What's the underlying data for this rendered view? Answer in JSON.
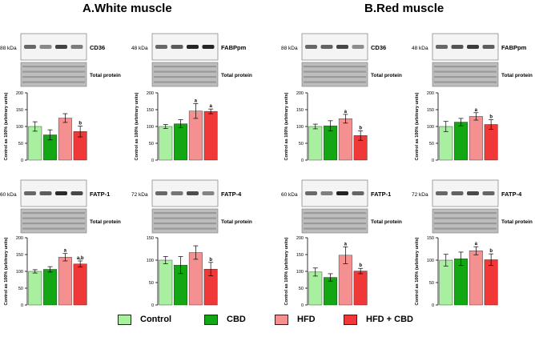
{
  "sections": [
    {
      "title": "A.White muscle"
    },
    {
      "title": "B.Red muscle"
    }
  ],
  "legend": [
    {
      "label": "Control",
      "color": "#a8f0a0"
    },
    {
      "label": "CBD",
      "color": "#13a813"
    },
    {
      "label": "HFD",
      "color": "#f59090"
    },
    {
      "label": "HFD + CBD",
      "color": "#f03838"
    }
  ],
  "total_protein_label": "Total protein",
  "chart_data": [
    {
      "type": "bar",
      "panel": "A.White muscle",
      "protein": "CD36",
      "kda": "88 kDa",
      "ylabel": "Control as 100% (arbitrary units)",
      "ylim": [
        0,
        200
      ],
      "yticks": [
        0,
        50,
        100,
        150,
        200
      ],
      "categories": [
        "Control",
        "CBD",
        "HFD",
        "HFD + CBD"
      ],
      "values": [
        100,
        75,
        125,
        85
      ],
      "errors": [
        14,
        15,
        13,
        16
      ],
      "annotations": [
        "",
        "",
        "",
        "b"
      ]
    },
    {
      "type": "bar",
      "panel": "A.White muscle",
      "protein": "FABPpm",
      "kda": "48 kDa",
      "ylabel": "Control as 100% (arbitrary units)",
      "ylim": [
        0,
        200
      ],
      "yticks": [
        0,
        50,
        100,
        150,
        200
      ],
      "categories": [
        "Control",
        "CBD",
        "HFD",
        "HFD + CBD"
      ],
      "values": [
        100,
        108,
        146,
        145
      ],
      "errors": [
        6,
        12,
        22,
        7
      ],
      "annotations": [
        "",
        "",
        "a",
        "a"
      ]
    },
    {
      "type": "bar",
      "panel": "B.Red muscle",
      "protein": "CD36",
      "kda": "88 kDa",
      "ylabel": "Control as 100% (arbitrary units)",
      "ylim": [
        0,
        200
      ],
      "yticks": [
        0,
        50,
        100,
        150,
        200
      ],
      "categories": [
        "Control",
        "CBD",
        "HFD",
        "HFD + CBD"
      ],
      "values": [
        100,
        102,
        123,
        73
      ],
      "errors": [
        7,
        15,
        13,
        14
      ],
      "annotations": [
        "",
        "",
        "a",
        "b"
      ]
    },
    {
      "type": "bar",
      "panel": "B.Red muscle",
      "protein": "FABPpm",
      "kda": "48 kDa",
      "ylabel": "Control as 100% (arbitrary units)",
      "ylim": [
        0,
        200
      ],
      "yticks": [
        0,
        50,
        100,
        150,
        200
      ],
      "categories": [
        "Control",
        "CBD",
        "HFD",
        "HFD + CBD"
      ],
      "values": [
        100,
        113,
        130,
        106
      ],
      "errors": [
        15,
        11,
        11,
        14
      ],
      "annotations": [
        "",
        "",
        "a",
        "b"
      ]
    },
    {
      "type": "bar",
      "panel": "A.White muscle",
      "protein": "FATP-1",
      "kda": "60 kDa",
      "ylabel": "Control as 100% (arbitrary units)",
      "ylim": [
        0,
        200
      ],
      "yticks": [
        0,
        50,
        100,
        150,
        200
      ],
      "categories": [
        "Control",
        "CBD",
        "HFD",
        "HFD + CBD"
      ],
      "values": [
        100,
        106,
        142,
        122
      ],
      "errors": [
        5,
        8,
        11,
        9
      ],
      "annotations": [
        "",
        "",
        "a",
        "a,b"
      ]
    },
    {
      "type": "bar",
      "panel": "A.White muscle",
      "protein": "FATP-4",
      "kda": "72 kDa",
      "ylabel": "",
      "ylim": [
        0,
        150
      ],
      "yticks": [
        0,
        50,
        100,
        150
      ],
      "categories": [
        "Control",
        "CBD",
        "HFD",
        "HFD + CBD"
      ],
      "values": [
        100,
        89,
        117,
        80
      ],
      "errors": [
        8,
        19,
        15,
        15
      ],
      "annotations": [
        "",
        "",
        "",
        "b"
      ]
    },
    {
      "type": "bar",
      "panel": "B.Red muscle",
      "protein": "FATP-1",
      "kda": "60 kDa",
      "ylabel": "Control as 100% (arbitrary units)",
      "ylim": [
        0,
        200
      ],
      "yticks": [
        0,
        50,
        100,
        150,
        200
      ],
      "categories": [
        "Control",
        "CBD",
        "HFD",
        "HFD + CBD"
      ],
      "values": [
        98,
        82,
        148,
        101
      ],
      "errors": [
        12,
        11,
        25,
        8
      ],
      "annotations": [
        "",
        "",
        "a",
        "b"
      ]
    },
    {
      "type": "bar",
      "panel": "B.Red muscle",
      "protein": "FATP-4",
      "kda": "72 kDa",
      "ylabel": "Control as 100% (arbitrary units)",
      "ylim": [
        0,
        150
      ],
      "yticks": [
        0,
        50,
        100,
        150
      ],
      "categories": [
        "Control",
        "CBD",
        "HFD",
        "HFD + CBD"
      ],
      "values": [
        100,
        103,
        121,
        101
      ],
      "errors": [
        13,
        15,
        9,
        13
      ],
      "annotations": [
        "",
        "",
        "a",
        "b"
      ]
    }
  ]
}
